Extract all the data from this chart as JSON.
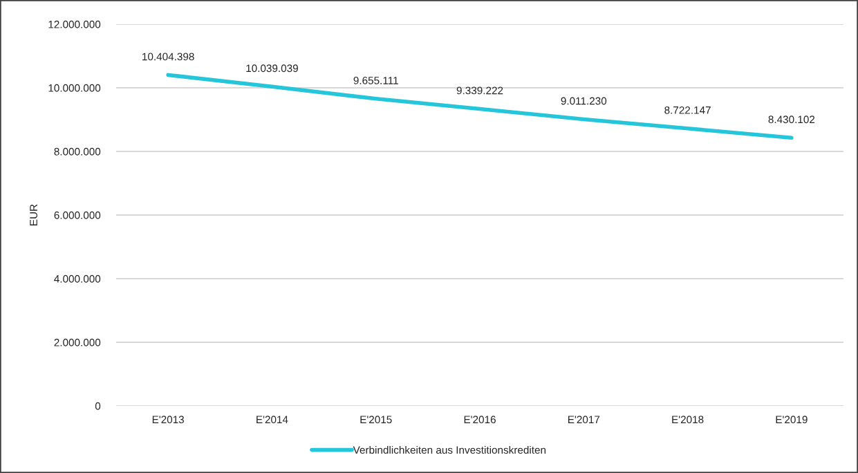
{
  "chart_data": {
    "type": "line",
    "ylabel": "EUR",
    "categories": [
      "E'2013",
      "E'2014",
      "E'2015",
      "E'2016",
      "E'2017",
      "E'2018",
      "E'2019"
    ],
    "series": [
      {
        "name": "Verbindlichkeiten aus Investitionskrediten",
        "color": "#26c6da",
        "values": [
          10404398,
          10039039,
          9655111,
          9339222,
          9011230,
          8722147,
          8430102
        ],
        "value_labels": [
          "10.404.398",
          "10.039.039",
          "9.655.111",
          "9.339.222",
          "9.011.230",
          "8.722.147",
          "8.430.102"
        ]
      }
    ],
    "ylim": [
      0,
      12000000
    ],
    "yticks": [
      0,
      {
        "value": 2000000,
        "label": "2.000.000"
      },
      {
        "value": 4000000,
        "label": "4.000.000"
      },
      {
        "value": 6000000,
        "label": "6.000.000"
      },
      {
        "value": 8000000,
        "label": "8.000.000"
      },
      {
        "value": 10000000,
        "label": "10.000.000"
      },
      {
        "value": 12000000,
        "label": "12.000.000"
      }
    ],
    "grid": "y",
    "legend": "bottom",
    "marker": "none",
    "line_style": "solid"
  }
}
